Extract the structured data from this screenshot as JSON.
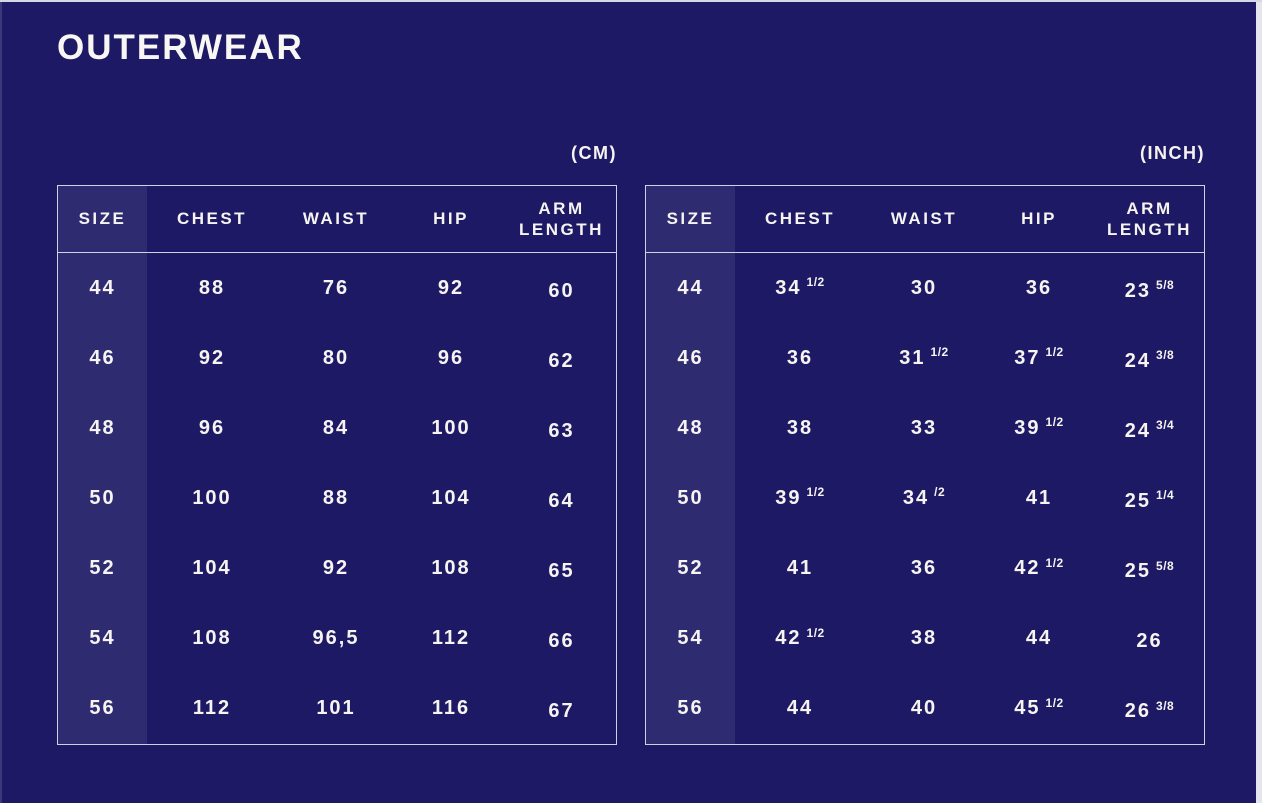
{
  "page": {
    "title": "OUTERWEAR"
  },
  "colors": {
    "background": "#1e1964",
    "size_column_background": "#2f2b71",
    "table_border": "#d0d2e3",
    "text": "#f6f4f1"
  },
  "chart_data": [
    {
      "type": "table",
      "unit_label": "(CM)",
      "columns": [
        "SIZE",
        "CHEST",
        "WAIST",
        "HIP",
        "ARM LENGTH"
      ],
      "rows": [
        [
          "44",
          "88",
          "76",
          "92",
          "60"
        ],
        [
          "46",
          "92",
          "80",
          "96",
          "62"
        ],
        [
          "48",
          "96",
          "84",
          "100",
          "63"
        ],
        [
          "50",
          "100",
          "88",
          "104",
          "64"
        ],
        [
          "52",
          "104",
          "92",
          "108",
          "65"
        ],
        [
          "54",
          "108",
          "96,5",
          "112",
          "66"
        ],
        [
          "56",
          "112",
          "101",
          "116",
          "67"
        ]
      ]
    },
    {
      "type": "table",
      "unit_label": "(INCH)",
      "columns": [
        "SIZE",
        "CHEST",
        "WAIST",
        "HIP",
        "ARM LENGTH"
      ],
      "rows": [
        [
          "44",
          "34 1/2",
          "30",
          "36",
          "23 5/8"
        ],
        [
          "46",
          "36",
          "31 1/2",
          "37 1/2",
          "24 3/8"
        ],
        [
          "48",
          "38",
          "33",
          "39 1/2",
          "24 3/4"
        ],
        [
          "50",
          "39 1/2",
          "34 /2",
          "41",
          "25 1/4"
        ],
        [
          "52",
          "41",
          "36",
          "42 1/2",
          "25 5/8"
        ],
        [
          "54",
          "42 1/2",
          "38",
          "44",
          "26"
        ],
        [
          "56",
          "44",
          "40",
          "45 1/2",
          "26 3/8"
        ]
      ]
    }
  ]
}
